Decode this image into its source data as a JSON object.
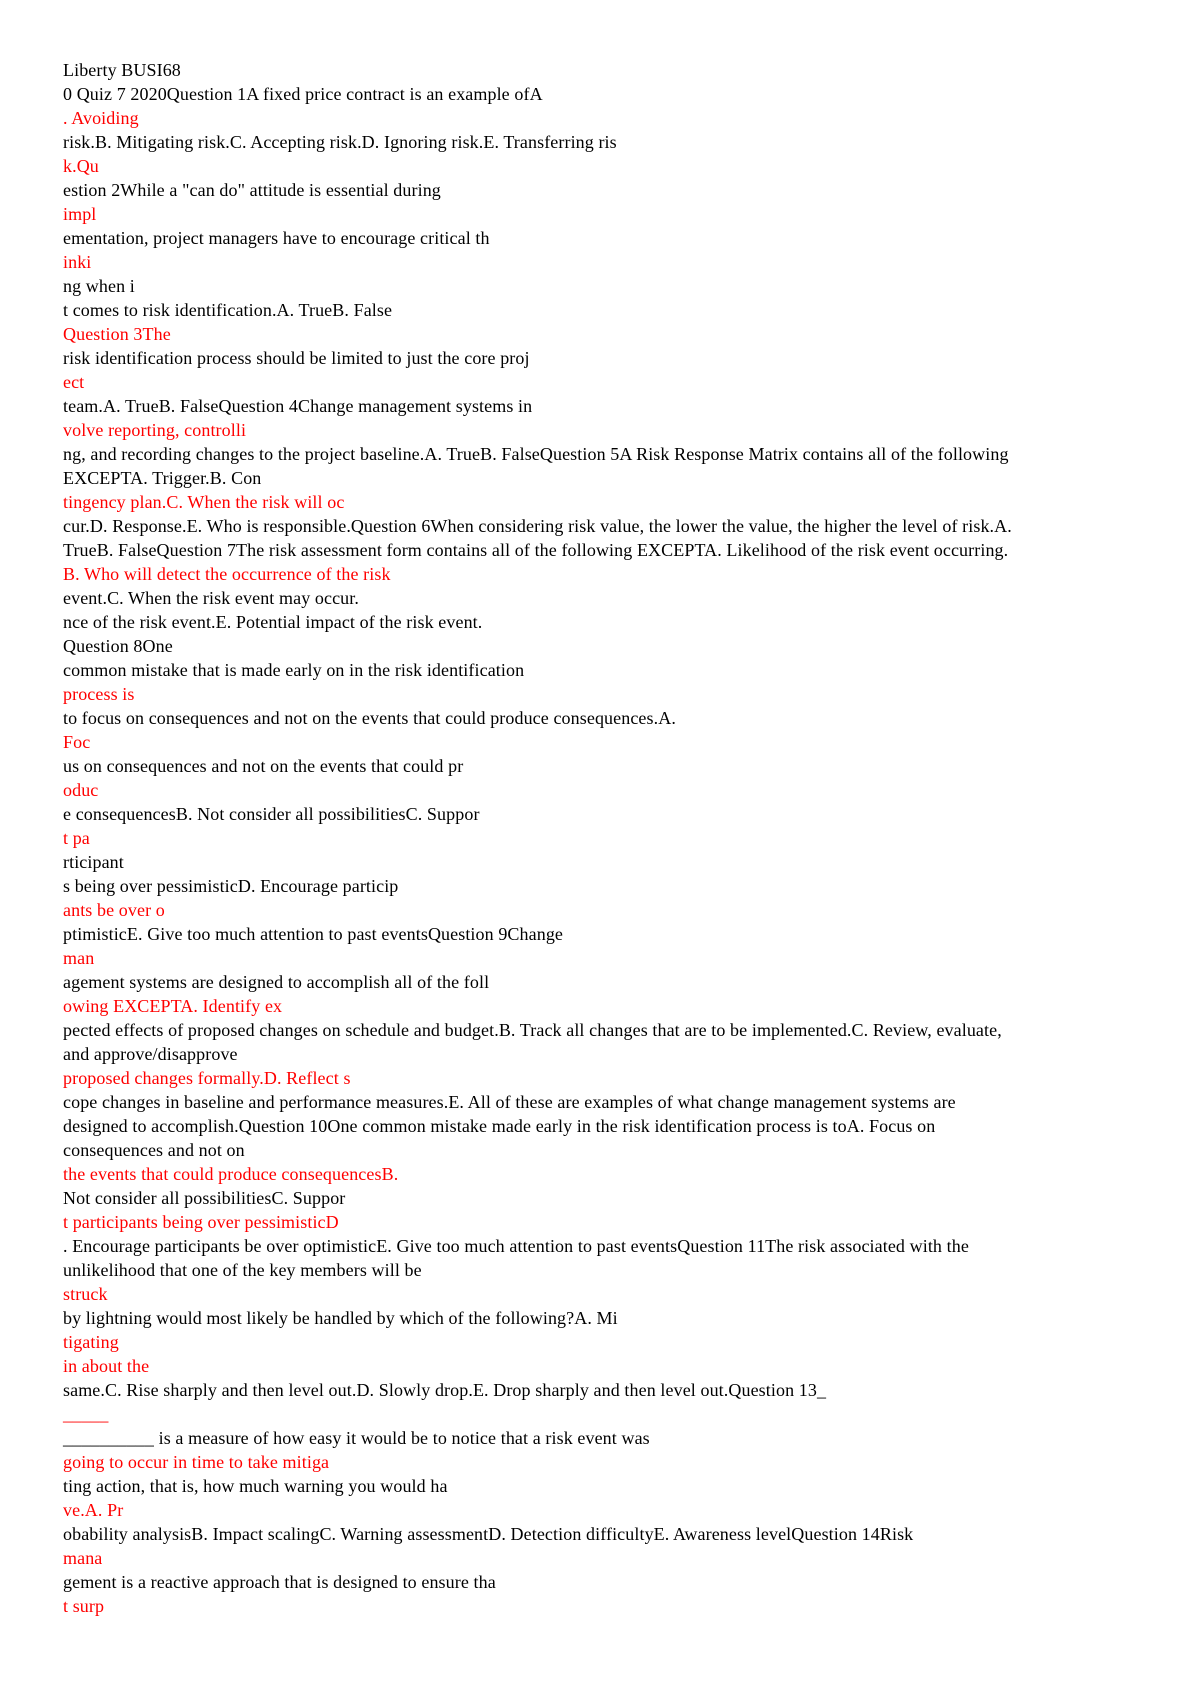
{
  "document": {
    "title": "Liberty BUSI68",
    "colors": {
      "black": "#000000",
      "red": "#ff0000"
    },
    "lines": [
      {
        "text": "Liberty BUSI68",
        "color": "black"
      },
      {
        "text": "0 Quiz 7 2020Question 1A fixed price contract is an example ofA",
        "color": "black"
      },
      {
        "text": ". Avoiding",
        "color": "red"
      },
      {
        "text": "risk.B. Mitigating risk.C. Accepting risk.D. Ignoring risk.E. Transferring ris",
        "color": "black"
      },
      {
        "text": "k.Qu",
        "color": "red"
      },
      {
        "text": "estion 2While a \"can do\" attitude is essential during",
        "color": "black"
      },
      {
        "text": "impl",
        "color": "red"
      },
      {
        "text": "ementation, project managers have to encourage critical th",
        "color": "black"
      },
      {
        "text": "inki",
        "color": "red"
      },
      {
        "text": "ng when i",
        "color": "black"
      },
      {
        "text": "t comes to risk identification.A. TrueB. False",
        "color": "black"
      },
      {
        "text": "Question 3The",
        "color": "red"
      },
      {
        "text": "risk identification process should be limited to just the core proj",
        "color": "black"
      },
      {
        "text": "ect",
        "color": "red"
      },
      {
        "text": "team.A. TrueB. FalseQuestion 4Change management systems in",
        "color": "black"
      },
      {
        "text": "volve reporting, controlli",
        "color": "red"
      },
      {
        "text": "ng, and recording changes to the project baseline.A. TrueB. FalseQuestion 5A Risk Response Matrix contains all of the following",
        "color": "black"
      },
      {
        "text": "EXCEPTA. Trigger.B. Con",
        "color": "black"
      },
      {
        "text": "tingency plan.C. When the risk will oc",
        "color": "red"
      },
      {
        "text": "cur.D. Response.E. Who is responsible.Question 6When considering risk value, the lower the value, the higher the level of risk.A.",
        "color": "black"
      },
      {
        "text": "TrueB. FalseQuestion 7The risk assessment form contains all of the following EXCEPTA. Likelihood of the risk event occurring.",
        "color": "black"
      },
      {
        "text": "B. Who will detect the occurrence of the risk",
        "color": "red"
      },
      {
        "text": "event.C. When the risk event may occur.",
        "color": "black"
      },
      {
        "text": "nce of the risk event.E. Potential impact of the risk event.",
        "color": "black"
      },
      {
        "text": "Question 8One",
        "color": "black"
      },
      {
        "text": "common mistake that is made early on in the risk identification",
        "color": "black"
      },
      {
        "text": "process is",
        "color": "red"
      },
      {
        "text": "to focus on consequences and not on the events that could produce consequences.A.",
        "color": "black"
      },
      {
        "text": "Foc",
        "color": "red"
      },
      {
        "text": "us on consequences and not on the events that could pr",
        "color": "black"
      },
      {
        "text": "oduc",
        "color": "red"
      },
      {
        "text": "e consequencesB. Not consider all possibilitiesC. Suppor",
        "color": "black"
      },
      {
        "text": "t pa",
        "color": "red"
      },
      {
        "text": "rticipant",
        "color": "black"
      },
      {
        "text": "s being over pessimisticD. Encourage particip",
        "color": "black"
      },
      {
        "text": "ants be over o",
        "color": "red"
      },
      {
        "text": "ptimisticE. Give too much attention to past eventsQuestion 9Change",
        "color": "black"
      },
      {
        "text": "man",
        "color": "red"
      },
      {
        "text": "agement systems are designed to accomplish all of the foll",
        "color": "black"
      },
      {
        "text": "owing EXCEPTA. Identify ex",
        "color": "red"
      },
      {
        "text": "pected effects of proposed changes on schedule and budget.B. Track all changes that are to be implemented.C. Review, evaluate,",
        "color": "black"
      },
      {
        "text": "and approve/disapprove",
        "color": "black"
      },
      {
        "text": "proposed changes formally.D. Reflect s",
        "color": "red"
      },
      {
        "text": "cope changes in baseline and performance measures.E. All of these are examples of what change management systems are",
        "color": "black"
      },
      {
        "text": "designed to accomplish.Question 10One common mistake made early in the risk identification process is toA. Focus on",
        "color": "black"
      },
      {
        "text": "consequences and not on",
        "color": "black"
      },
      {
        "text": "the events that could produce consequencesB.",
        "color": "red"
      },
      {
        "text": "Not consider all possibilitiesC. Suppor",
        "color": "black"
      },
      {
        "text": "t participants being over pessimisticD",
        "color": "red"
      },
      {
        "text": ". Encourage participants be over optimisticE. Give too much attention to past eventsQuestion 11The risk associated with the",
        "color": "black"
      },
      {
        "text": "unlikelihood that one of the key members will be",
        "color": "black"
      },
      {
        "text": "struck",
        "color": "red"
      },
      {
        "text": "by lightning would most likely be handled by which of the following?A. Mi",
        "color": "black"
      },
      {
        "text": "tigating",
        "color": "red"
      },
      {
        "text": "in about the",
        "color": "red"
      },
      {
        "text": "same.C. Rise sharply and then level out.D. Slowly drop.E. Drop sharply and then level out.Question 13_",
        "color": "black"
      },
      {
        "text": "_____",
        "color": "red"
      },
      {
        "text": "__________ is a measure of how easy it would be to notice that a risk event was",
        "color": "black"
      },
      {
        "text": "going to occur in time to take mitiga",
        "color": "red"
      },
      {
        "text": "ting action, that is, how much warning you would ha",
        "color": "black"
      },
      {
        "text": "ve.A. Pr",
        "color": "red"
      },
      {
        "text": "obability analysisB. Impact scalingC. Warning assessmentD. Detection difficultyE. Awareness levelQuestion 14Risk",
        "color": "black"
      },
      {
        "text": "mana",
        "color": "red"
      },
      {
        "text": "gement is a reactive approach that is designed to ensure tha",
        "color": "black"
      },
      {
        "text": "t surp",
        "color": "red"
      }
    ]
  }
}
